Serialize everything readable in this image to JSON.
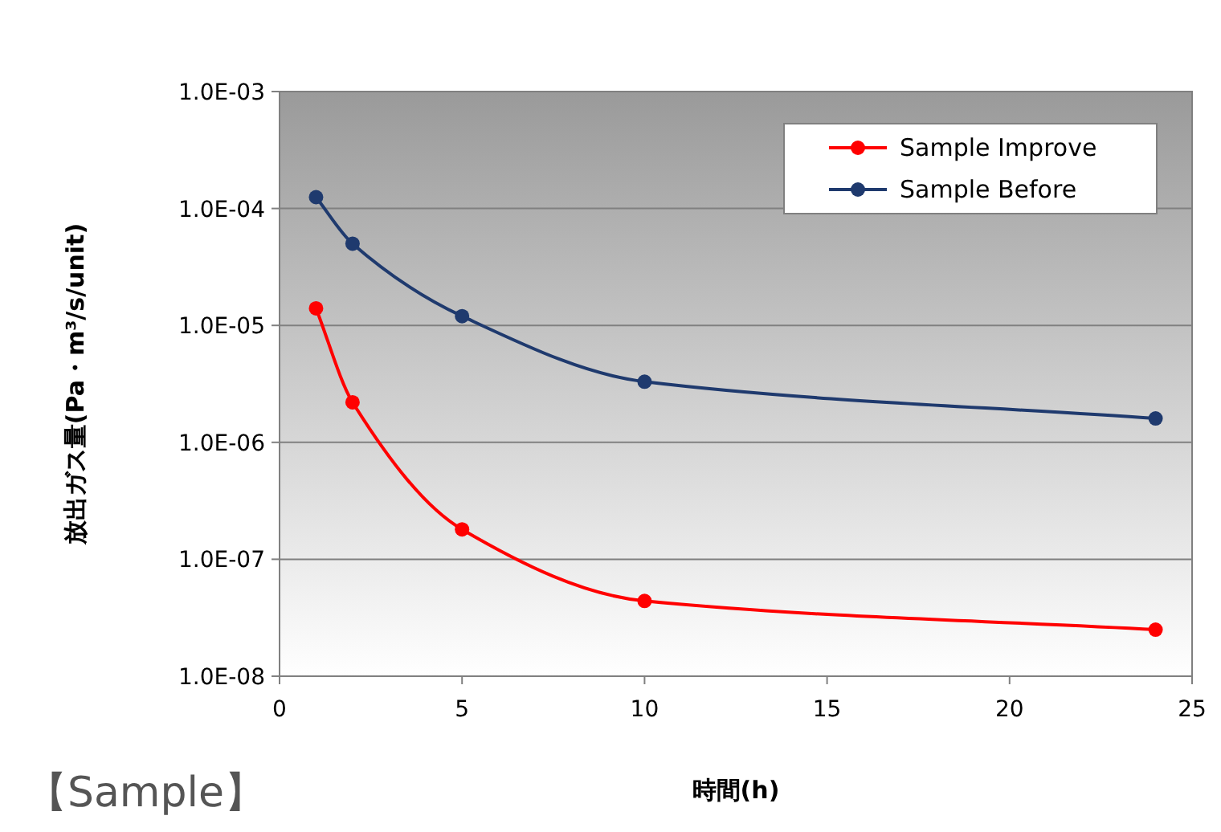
{
  "chart_data": {
    "type": "line",
    "xlabel": "時間(h)",
    "ylabel": "放出ガス量(Pa・m³/s/unit)",
    "log": "y",
    "xlim": [
      0,
      25
    ],
    "xticks": [
      0,
      5,
      10,
      15,
      20,
      25
    ],
    "ylim": [
      1e-08,
      0.001
    ],
    "yticks": [
      {
        "value": 1e-08,
        "label": "1.0E-08"
      },
      {
        "value": 1e-07,
        "label": "1.0E-07"
      },
      {
        "value": 1e-06,
        "label": "1.0E-06"
      },
      {
        "value": 1e-05,
        "label": "1.0E-05"
      },
      {
        "value": 0.0001,
        "label": "1.0E-04"
      },
      {
        "value": 0.001,
        "label": "1.0E-03"
      }
    ],
    "grid": "y",
    "legend": "top right",
    "marker": "circle",
    "line_style": "solid",
    "annotations": [
      "【Sample】"
    ],
    "series": [
      {
        "name": "Sample Improve",
        "color": "#ff0000",
        "x": [
          1,
          2,
          5,
          10,
          24
        ],
        "values": [
          1.4e-05,
          2.2e-06,
          1.8e-07,
          4.4e-08,
          2.5e-08
        ]
      },
      {
        "name": "Sample Before",
        "color": "#1f3a6e",
        "x": [
          1,
          2,
          5,
          10,
          24
        ],
        "values": [
          0.000125,
          5e-05,
          1.2e-05,
          3.3e-06,
          1.6e-06
        ]
      }
    ]
  }
}
